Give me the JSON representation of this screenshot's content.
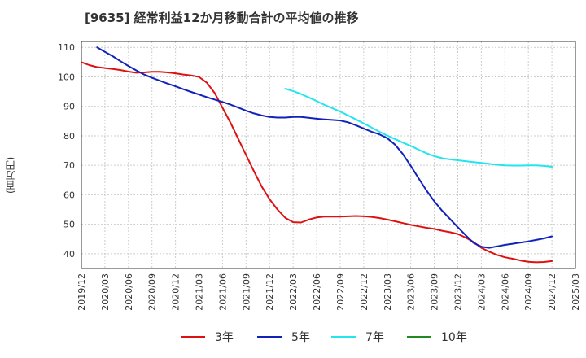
{
  "chart_data": {
    "type": "line",
    "title": "[9635]  経常利益12か月移動合計の平均値の推移",
    "xlabel": "",
    "ylabel": "(百万円)",
    "xlim": [
      "2019-12",
      "2025-03"
    ],
    "ylim": [
      35,
      112
    ],
    "y_ticks": [
      40,
      50,
      60,
      70,
      80,
      90,
      100,
      110
    ],
    "x_ticks": [
      "2019/12",
      "2020/03",
      "2020/06",
      "2020/09",
      "2020/12",
      "2021/03",
      "2021/06",
      "2021/09",
      "2021/12",
      "2022/03",
      "2022/06",
      "2022/09",
      "2022/12",
      "2023/03",
      "2023/06",
      "2023/09",
      "2023/12",
      "2024/03",
      "2024/06",
      "2024/09",
      "2024/12",
      "2025/03"
    ],
    "grid": true,
    "legend_position": "bottom",
    "series": [
      {
        "name": "3年",
        "color": "#dd1111",
        "points": [
          [
            "2019-12",
            105.0
          ],
          [
            "2020-01",
            104.0
          ],
          [
            "2020-02",
            103.3
          ],
          [
            "2020-03",
            103.0
          ],
          [
            "2020-04",
            102.7
          ],
          [
            "2020-05",
            102.3
          ],
          [
            "2020-06",
            101.8
          ],
          [
            "2020-07",
            101.4
          ],
          [
            "2020-08",
            101.5
          ],
          [
            "2020-09",
            101.7
          ],
          [
            "2020-10",
            101.7
          ],
          [
            "2020-11",
            101.5
          ],
          [
            "2020-12",
            101.2
          ],
          [
            "2021-01",
            100.8
          ],
          [
            "2021-02",
            100.5
          ],
          [
            "2021-03",
            100.0
          ],
          [
            "2021-04",
            98.0
          ],
          [
            "2021-05",
            94.5
          ],
          [
            "2021-06",
            89.5
          ],
          [
            "2021-07",
            84.5
          ],
          [
            "2021-08",
            79.0
          ],
          [
            "2021-09",
            73.5
          ],
          [
            "2021-10",
            68.0
          ],
          [
            "2021-11",
            62.8
          ],
          [
            "2021-12",
            58.5
          ],
          [
            "2022-01",
            55.0
          ],
          [
            "2022-02",
            52.2
          ],
          [
            "2022-03",
            50.7
          ],
          [
            "2022-04",
            50.6
          ],
          [
            "2022-05",
            51.6
          ],
          [
            "2022-06",
            52.3
          ],
          [
            "2022-07",
            52.6
          ],
          [
            "2022-08",
            52.6
          ],
          [
            "2022-09",
            52.6
          ],
          [
            "2022-10",
            52.7
          ],
          [
            "2022-11",
            52.8
          ],
          [
            "2022-12",
            52.7
          ],
          [
            "2023-01",
            52.5
          ],
          [
            "2023-02",
            52.1
          ],
          [
            "2023-03",
            51.6
          ],
          [
            "2023-04",
            51.0
          ],
          [
            "2023-05",
            50.4
          ],
          [
            "2023-06",
            49.8
          ],
          [
            "2023-07",
            49.3
          ],
          [
            "2023-08",
            48.8
          ],
          [
            "2023-09",
            48.4
          ],
          [
            "2023-10",
            47.8
          ],
          [
            "2023-11",
            47.3
          ],
          [
            "2023-12",
            46.7
          ],
          [
            "2024-01",
            45.5
          ],
          [
            "2024-02",
            44.0
          ],
          [
            "2024-03",
            42.0
          ],
          [
            "2024-04",
            40.7
          ],
          [
            "2024-05",
            39.6
          ],
          [
            "2024-06",
            38.8
          ],
          [
            "2024-07",
            38.3
          ],
          [
            "2024-08",
            37.7
          ],
          [
            "2024-09",
            37.3
          ],
          [
            "2024-10",
            37.1
          ],
          [
            "2024-11",
            37.2
          ],
          [
            "2024-12",
            37.5
          ]
        ]
      },
      {
        "name": "5年",
        "color": "#1122bb",
        "points": [
          [
            "2020-02",
            110.0
          ],
          [
            "2020-03",
            108.5
          ],
          [
            "2020-04",
            107.0
          ],
          [
            "2020-05",
            105.3
          ],
          [
            "2020-06",
            103.7
          ],
          [
            "2020-07",
            102.2
          ],
          [
            "2020-08",
            100.8
          ],
          [
            "2020-09",
            99.7
          ],
          [
            "2020-10",
            98.7
          ],
          [
            "2020-11",
            97.7
          ],
          [
            "2020-12",
            96.8
          ],
          [
            "2021-01",
            95.8
          ],
          [
            "2021-02",
            94.9
          ],
          [
            "2021-03",
            94.0
          ],
          [
            "2021-04",
            93.1
          ],
          [
            "2021-05",
            92.3
          ],
          [
            "2021-06",
            91.5
          ],
          [
            "2021-07",
            90.6
          ],
          [
            "2021-08",
            89.6
          ],
          [
            "2021-09",
            88.5
          ],
          [
            "2021-10",
            87.6
          ],
          [
            "2021-11",
            86.9
          ],
          [
            "2021-12",
            86.4
          ],
          [
            "2022-01",
            86.2
          ],
          [
            "2022-02",
            86.2
          ],
          [
            "2022-03",
            86.4
          ],
          [
            "2022-04",
            86.4
          ],
          [
            "2022-05",
            86.1
          ],
          [
            "2022-06",
            85.8
          ],
          [
            "2022-07",
            85.6
          ],
          [
            "2022-08",
            85.4
          ],
          [
            "2022-09",
            85.2
          ],
          [
            "2022-10",
            84.6
          ],
          [
            "2022-11",
            83.6
          ],
          [
            "2022-12",
            82.5
          ],
          [
            "2023-01",
            81.4
          ],
          [
            "2023-02",
            80.5
          ],
          [
            "2023-03",
            79.2
          ],
          [
            "2023-04",
            77.0
          ],
          [
            "2023-05",
            73.8
          ],
          [
            "2023-06",
            69.8
          ],
          [
            "2023-07",
            65.6
          ],
          [
            "2023-08",
            61.5
          ],
          [
            "2023-09",
            57.8
          ],
          [
            "2023-10",
            54.6
          ],
          [
            "2023-11",
            51.8
          ],
          [
            "2023-12",
            49.0
          ],
          [
            "2024-01",
            46.3
          ],
          [
            "2024-02",
            43.7
          ],
          [
            "2024-03",
            42.4
          ],
          [
            "2024-04",
            42.0
          ],
          [
            "2024-05",
            42.5
          ],
          [
            "2024-06",
            43.0
          ],
          [
            "2024-07",
            43.4
          ],
          [
            "2024-08",
            43.8
          ],
          [
            "2024-09",
            44.2
          ],
          [
            "2024-10",
            44.7
          ],
          [
            "2024-11",
            45.2
          ],
          [
            "2024-12",
            45.9
          ]
        ]
      },
      {
        "name": "7年",
        "color": "#22e5ee",
        "points": [
          [
            "2022-02",
            96.0
          ],
          [
            "2022-03",
            95.2
          ],
          [
            "2022-04",
            94.2
          ],
          [
            "2022-05",
            93.0
          ],
          [
            "2022-06",
            91.8
          ],
          [
            "2022-07",
            90.5
          ],
          [
            "2022-08",
            89.4
          ],
          [
            "2022-09",
            88.2
          ],
          [
            "2022-10",
            86.9
          ],
          [
            "2022-11",
            85.6
          ],
          [
            "2022-12",
            84.2
          ],
          [
            "2023-01",
            82.8
          ],
          [
            "2023-02",
            81.4
          ],
          [
            "2023-03",
            80.1
          ],
          [
            "2023-04",
            78.9
          ],
          [
            "2023-05",
            77.7
          ],
          [
            "2023-06",
            76.6
          ],
          [
            "2023-07",
            75.3
          ],
          [
            "2023-08",
            74.1
          ],
          [
            "2023-09",
            73.1
          ],
          [
            "2023-10",
            72.4
          ],
          [
            "2023-11",
            72.0
          ],
          [
            "2023-12",
            71.7
          ],
          [
            "2024-01",
            71.4
          ],
          [
            "2024-02",
            71.1
          ],
          [
            "2024-03",
            70.8
          ],
          [
            "2024-04",
            70.5
          ],
          [
            "2024-05",
            70.2
          ],
          [
            "2024-06",
            70.0
          ],
          [
            "2024-07",
            69.9
          ],
          [
            "2024-08",
            69.9
          ],
          [
            "2024-09",
            70.0
          ],
          [
            "2024-10",
            70.0
          ],
          [
            "2024-11",
            69.8
          ],
          [
            "2024-12",
            69.5
          ]
        ]
      },
      {
        "name": "10年",
        "color": "#228822",
        "points": []
      }
    ]
  }
}
